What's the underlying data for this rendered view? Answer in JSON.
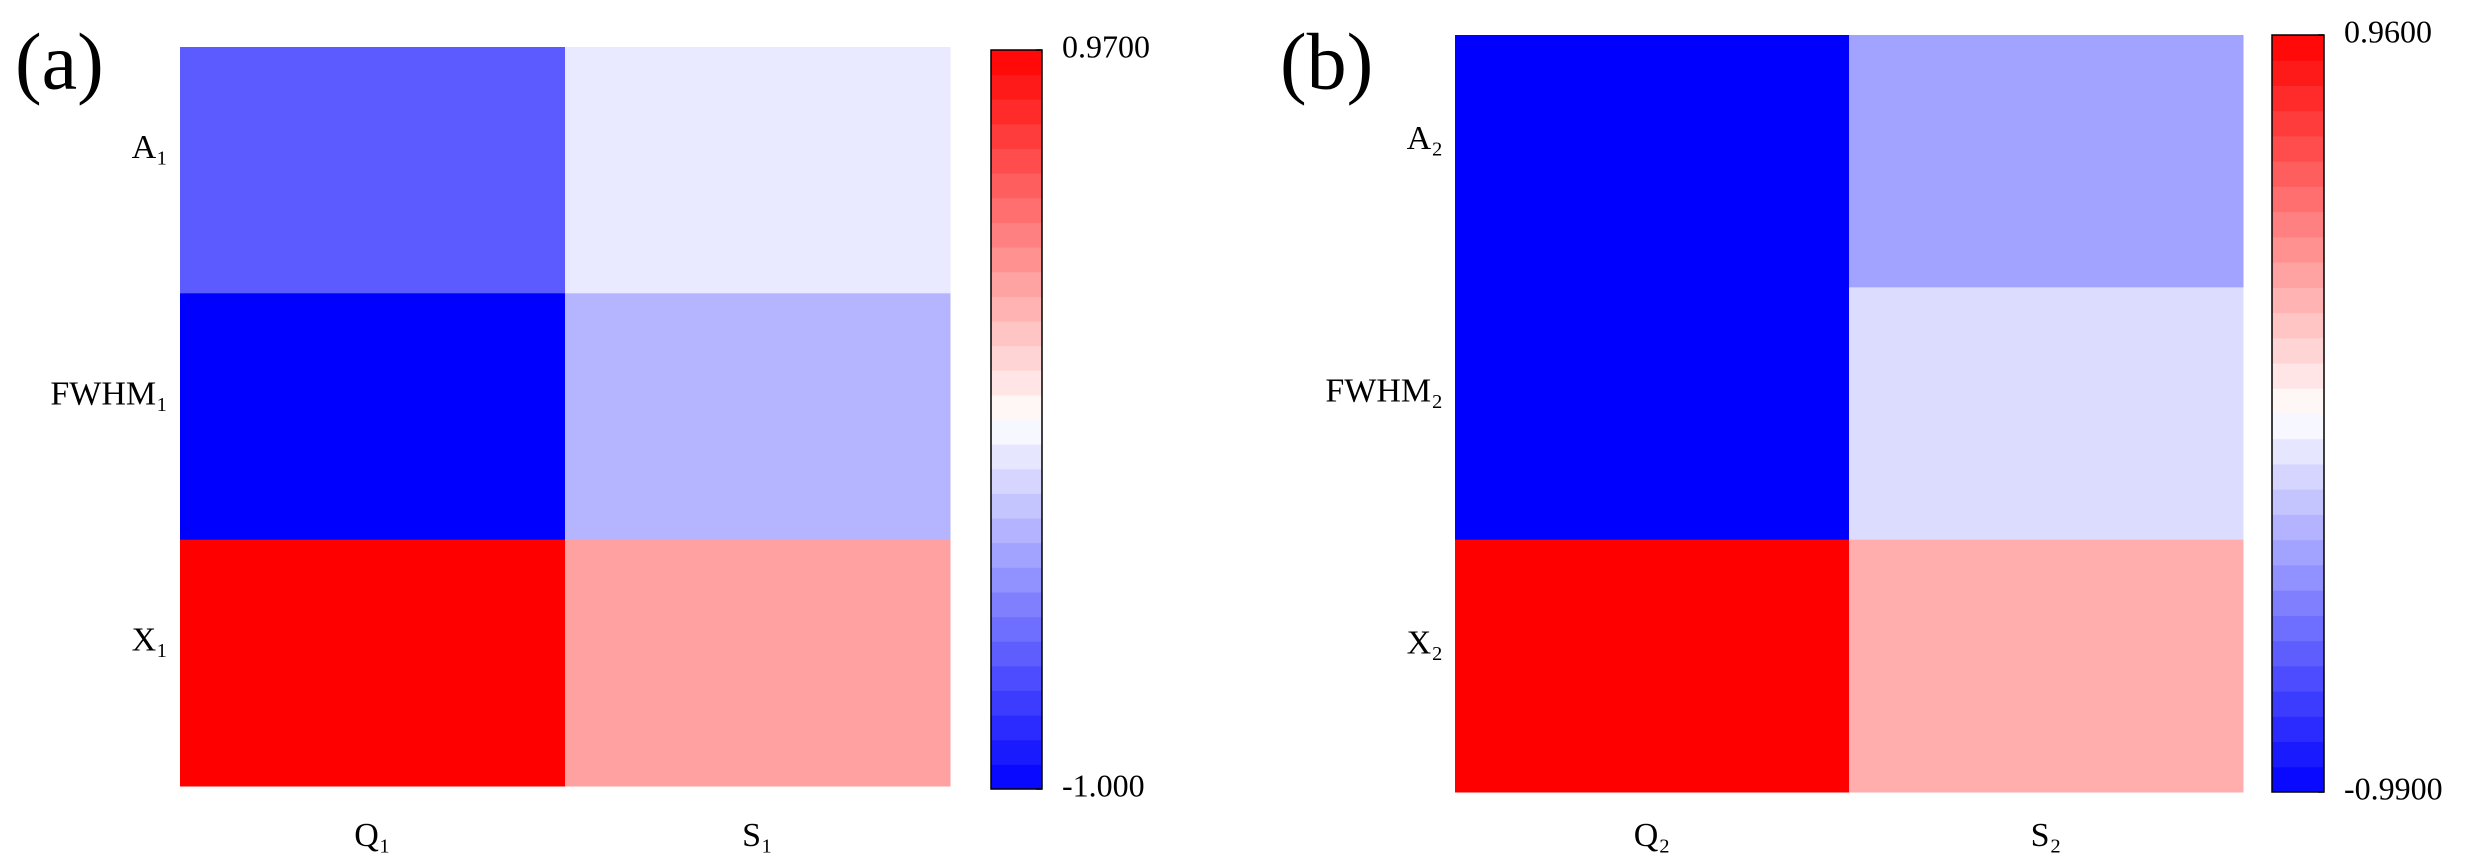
{
  "chart_data": [
    {
      "type": "heatmap",
      "title": "(a)",
      "x_categories": [
        "Q₁",
        "S₁"
      ],
      "y_categories": [
        "A₁",
        "FWHM₁",
        "X₁"
      ],
      "values": [
        [
          -0.65,
          -0.1
        ],
        [
          -1.0,
          -0.3
        ],
        [
          0.97,
          0.35
        ]
      ],
      "zlim": [
        -1.0,
        0.97
      ],
      "zticks": [
        {
          "value": 0.97,
          "label": "0.9700"
        },
        {
          "value": -1.0,
          "label": "-1.000"
        }
      ],
      "colormap": [
        "#0000ff",
        "#ffffff",
        "#ff0000"
      ]
    },
    {
      "type": "heatmap",
      "title": "(b)",
      "x_categories": [
        "Q₂",
        "S₂"
      ],
      "y_categories": [
        "A₂",
        "FWHM₂",
        "X₂"
      ],
      "values": [
        [
          -0.99,
          -0.37
        ],
        [
          -0.99,
          -0.15
        ],
        [
          0.96,
          0.3
        ]
      ],
      "zlim": [
        -0.99,
        0.96
      ],
      "zticks": [
        {
          "value": 0.96,
          "label": "0.9600"
        },
        {
          "value": -0.99,
          "label": "-0.9900"
        }
      ],
      "colormap": [
        "#0000ff",
        "#ffffff",
        "#ff0000"
      ]
    }
  ]
}
